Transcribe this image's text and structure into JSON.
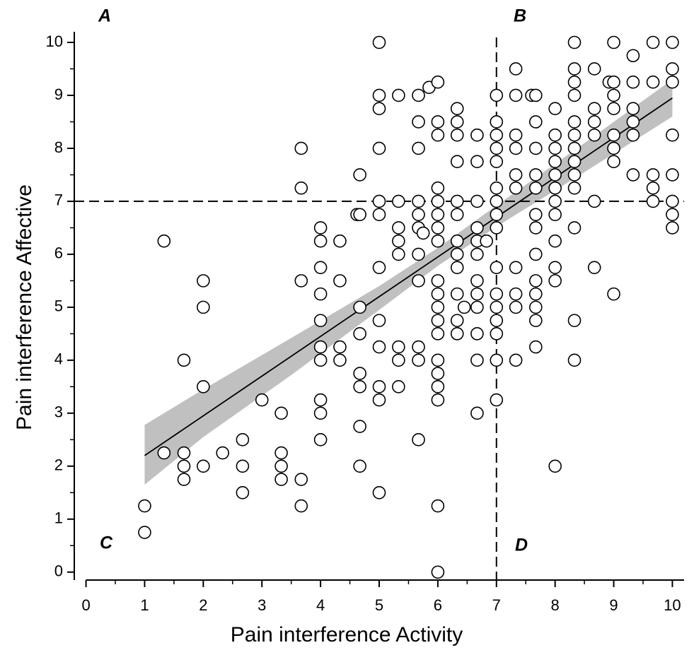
{
  "chart_data": {
    "type": "scatter",
    "x_label": "Pain interference Activity",
    "y_label": "Pain interference Affective",
    "quadrant_labels": [
      "A",
      "B",
      "C",
      "D"
    ],
    "xlim": [
      -0.2,
      10.2
    ],
    "ylim": [
      -0.15,
      10.2
    ],
    "xticks": [
      0,
      1,
      2,
      3,
      4,
      5,
      6,
      7,
      8,
      9,
      10
    ],
    "yticks": [
      0,
      1,
      2,
      3,
      4,
      5,
      6,
      7,
      8,
      9,
      10
    ],
    "x_minor_ticks": [
      0.5,
      1.5,
      2.5,
      3.5,
      4.5,
      5.5,
      6.5,
      7.5,
      8.5,
      9.5
    ],
    "y_minor_ticks": [
      0.5,
      1.5,
      2.5,
      3.5,
      4.5,
      5.5,
      6.5,
      7.5,
      8.5,
      9.5
    ],
    "vlines": [
      7
    ],
    "hlines": [
      7
    ],
    "marker_fill": "#ffffff",
    "marker_edge": "#000000",
    "fit": {
      "x": [
        1,
        10
      ],
      "y": [
        2.2,
        8.95
      ],
      "color": "#000000"
    },
    "band": {
      "x": [
        1,
        2,
        3.5,
        5,
        6,
        7,
        8.5,
        10
      ],
      "lower": [
        1.65,
        2.55,
        3.72,
        4.95,
        5.78,
        6.52,
        7.55,
        8.6
      ],
      "upper": [
        2.78,
        3.45,
        4.42,
        5.4,
        6.12,
        6.92,
        8.1,
        9.3
      ],
      "color": "#c0c0c0"
    },
    "x": [
      1,
      1,
      1.33,
      1.33,
      1.67,
      1.67,
      1.67,
      1.67,
      2,
      2,
      2,
      2,
      2.33,
      2.67,
      2.67,
      2.67,
      3,
      3.33,
      3.33,
      3.33,
      3.33,
      3.67,
      3.67,
      3.67,
      3.67,
      3.67,
      4,
      4,
      4,
      4,
      4,
      4,
      4,
      4,
      4,
      4,
      4.33,
      4.33,
      4.33,
      4.33,
      4.62,
      4.67,
      4.67,
      4.67,
      4.67,
      4.67,
      4.67,
      4.67,
      4.67,
      5,
      5,
      5,
      5,
      5,
      5,
      5,
      5,
      5,
      5,
      5,
      5,
      5.33,
      5.33,
      5.33,
      5.33,
      5.33,
      5.33,
      5.33,
      5.33,
      5.67,
      5.67,
      5.67,
      5.67,
      5.67,
      5.67,
      5.67,
      5.67,
      5.67,
      5.67,
      5.67,
      5.75,
      5.85,
      6,
      6,
      6,
      6,
      6,
      6,
      6,
      6,
      6,
      6,
      6,
      6,
      6,
      6,
      6,
      6,
      6,
      6,
      6,
      6.33,
      6.33,
      6.33,
      6.33,
      6.33,
      6.33,
      6.33,
      6.33,
      6.33,
      6.33,
      6.33,
      6.33,
      6.45,
      6.67,
      6.67,
      6.67,
      6.67,
      6.67,
      6.67,
      6.67,
      6.67,
      6.67,
      6.67,
      6.67,
      6.67,
      6.83,
      7,
      7,
      7,
      7,
      7,
      7,
      7,
      7,
      7,
      7,
      7,
      7,
      7,
      7,
      7,
      7,
      7.33,
      7.33,
      7.33,
      7.33,
      7.33,
      7.33,
      7.33,
      7.33,
      7.33,
      7.33,
      7.6,
      7.67,
      7.67,
      7.67,
      7.67,
      7.67,
      7.67,
      7.67,
      7.67,
      7.67,
      7.67,
      7.67,
      7.67,
      7.67,
      8,
      8,
      8,
      8,
      8,
      8,
      8,
      8,
      8,
      8,
      8,
      8,
      8.33,
      8.33,
      8.33,
      8.33,
      8.33,
      8.33,
      8.33,
      8.33,
      8.33,
      8.33,
      8.33,
      8.33,
      8.33,
      8.67,
      8.67,
      8.67,
      8.67,
      8.67,
      8.67,
      8.92,
      9,
      9,
      9,
      9,
      9,
      9,
      9,
      9,
      9.33,
      9.33,
      9.33,
      9.33,
      9.33,
      9.33,
      9.67,
      9.67,
      9.67,
      9.67,
      9.67,
      10,
      10,
      10,
      10,
      10,
      10,
      10,
      10
    ],
    "values": [
      1.25,
      0.75,
      6.25,
      2.25,
      4,
      2.25,
      2,
      1.75,
      5.5,
      5,
      3.5,
      2,
      2.25,
      2.5,
      2,
      1.5,
      3.25,
      3,
      2.25,
      2,
      1.75,
      8,
      7.25,
      5.5,
      1.75,
      1.25,
      6.5,
      6.25,
      5.75,
      5.25,
      4.75,
      4.25,
      4,
      3.25,
      3,
      2.5,
      6.25,
      5.5,
      4.25,
      4,
      6.75,
      7.5,
      6.75,
      5,
      4.5,
      3.75,
      3.5,
      2.75,
      2,
      10,
      9,
      8.75,
      8,
      7,
      6.75,
      5.75,
      4.75,
      4.25,
      3.5,
      3.25,
      1.5,
      9,
      7,
      6.5,
      6.25,
      6,
      4.25,
      4,
      3.5,
      9,
      8.5,
      8,
      7,
      6.75,
      6.5,
      6,
      5.5,
      4.25,
      4,
      2.5,
      6.4,
      9.15,
      9.25,
      8.5,
      8.25,
      7.25,
      7,
      6.75,
      6.5,
      6.25,
      5.5,
      5.25,
      5,
      4.75,
      4.5,
      4,
      3.75,
      3.5,
      3.25,
      1.25,
      0,
      8.75,
      8.5,
      8.25,
      7.75,
      7,
      6.75,
      6.25,
      6,
      5.75,
      5.25,
      4.75,
      4.5,
      5,
      8.25,
      7.75,
      7,
      6.5,
      6.25,
      6,
      5.5,
      5.25,
      5,
      4.5,
      4,
      3,
      6.25,
      9,
      8.5,
      8.25,
      8,
      7.75,
      7.25,
      7,
      6.75,
      6.5,
      5.75,
      5.25,
      5,
      4.75,
      4.5,
      4,
      3.25,
      9.5,
      9,
      8.25,
      8,
      7.5,
      7.25,
      5.75,
      5.25,
      5,
      4,
      9,
      9,
      8.5,
      8,
      7.5,
      7.25,
      6.75,
      6.5,
      6,
      5.5,
      5.25,
      5,
      4.75,
      4.25,
      8.75,
      8.25,
      8,
      7.75,
      7.5,
      7.25,
      7,
      6.75,
      6.25,
      5.75,
      5.5,
      2,
      10,
      9.5,
      9.25,
      9,
      8.5,
      8.25,
      8,
      7.75,
      7.5,
      7.25,
      6.5,
      4.75,
      4,
      9.5,
      8.75,
      8.5,
      8.25,
      7,
      5.75,
      9.25,
      10,
      9.25,
      9,
      8.75,
      8.25,
      8,
      7.75,
      5.25,
      9.75,
      9.25,
      8.75,
      8.5,
      8.25,
      7.5,
      10,
      9.25,
      7.5,
      7.25,
      7,
      10,
      9.5,
      9.25,
      8.25,
      7.5,
      7,
      6.75,
      6.5
    ]
  }
}
